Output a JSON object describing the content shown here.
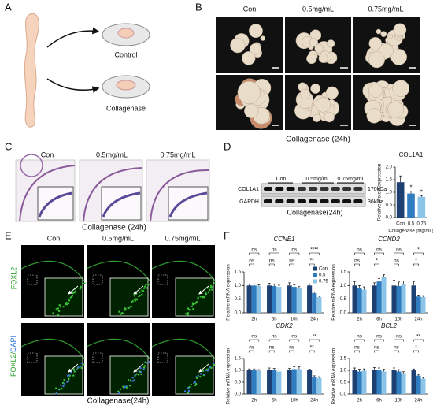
{
  "panels": {
    "A": {
      "label": "A",
      "control": "Control",
      "treated": "Collagenase"
    },
    "B": {
      "label": "B",
      "columns": [
        "Con",
        "0.5mg/mL",
        "0.75mg/mL"
      ],
      "caption": "Collagenase (24h)"
    },
    "C": {
      "label": "C",
      "columns": [
        "Con",
        "0.5mg/mL",
        "0.75mg/mL"
      ],
      "caption": "Collagenase (24h)"
    },
    "D": {
      "label": "D",
      "blot_columns": [
        "Con",
        "0.5mg/mL",
        "0.75mg/mL"
      ],
      "proteins": [
        "COL1A1",
        "GAPDH"
      ],
      "sizes": [
        "170kDa",
        "36kDa"
      ],
      "caption": "Collagenase(24h)"
    },
    "E": {
      "label": "E",
      "columns": [
        "Con",
        "0.5mg/mL",
        "0.75mg/mL"
      ],
      "row_labels": [
        "FOXL2",
        [
          "FOXL2/",
          "DAPI"
        ]
      ],
      "caption": "Collagenase(24h)"
    },
    "F": {
      "label": "F"
    }
  },
  "chart_data": [
    {
      "type": "bar",
      "title": "COL1A1",
      "ylabel": "Relative protein expression",
      "xlabel": "Collagenase (mg/mL)",
      "categories": [
        "Con",
        "0.5",
        "0.75"
      ],
      "values": [
        1.4,
        0.95,
        0.82
      ],
      "errors": [
        0.25,
        0.1,
        0.05
      ],
      "colors": [
        "#1d3f72",
        "#2f7dc0",
        "#8cc4e8"
      ],
      "significance": [
        null,
        "*",
        "*"
      ],
      "ylim": [
        0,
        2
      ],
      "yticks": [
        {
          "value": 0,
          "label": "0.0"
        },
        0.5,
        {
          "value": 1,
          "label": "1.0"
        },
        1.5,
        {
          "value": 2,
          "label": "2.0"
        }
      ]
    },
    {
      "type": "bar",
      "title": "CCNE1",
      "italic_title": true,
      "ylabel": "Relative mRNA expression",
      "legend": true,
      "categories": [
        "2h",
        "6h",
        "10h",
        "24h"
      ],
      "series": [
        {
          "name": "Con",
          "color": "#1d3f72",
          "values": [
            1.0,
            1.0,
            1.0,
            1.0
          ],
          "errors": [
            0.05,
            0.08,
            0.1,
            0.06
          ]
        },
        {
          "name": "0.5",
          "color": "#2f7dc0",
          "values": [
            1.0,
            0.98,
            0.95,
            0.72
          ],
          "errors": [
            0.06,
            0.08,
            0.07,
            0.05
          ]
        },
        {
          "name": "0.75",
          "color": "#8cc4e8",
          "values": [
            0.98,
            0.95,
            0.9,
            0.58
          ],
          "errors": [
            0.05,
            0.06,
            0.06,
            0.04
          ]
        }
      ],
      "significance": [
        [
          "ns",
          "ns"
        ],
        [
          "ns",
          "ns"
        ],
        [
          "ns",
          "ns"
        ],
        [
          "****",
          "**"
        ]
      ],
      "ylim": [
        0,
        1.5
      ],
      "yticks": [
        {
          "value": 0,
          "label": "0.0"
        },
        0.5,
        {
          "value": 1,
          "label": "1.0"
        },
        1.5
      ]
    },
    {
      "type": "bar",
      "title": "CCND2",
      "italic_title": true,
      "ylabel": "Relative mRNA expression",
      "categories": [
        "2h",
        "6h",
        "10h",
        "24h"
      ],
      "series": [
        {
          "color": "#1d3f72",
          "values": [
            1.0,
            1.0,
            1.0,
            1.0
          ],
          "errors": [
            0.15,
            0.1,
            0.2,
            0.15
          ]
        },
        {
          "color": "#2f7dc0",
          "values": [
            0.9,
            1.15,
            0.98,
            0.6
          ],
          "errors": [
            0.1,
            0.1,
            0.15,
            0.05
          ]
        },
        {
          "color": "#8cc4e8",
          "values": [
            0.85,
            1.3,
            1.05,
            0.58
          ],
          "errors": [
            0.1,
            0.1,
            0.12,
            0.05
          ]
        }
      ],
      "significance": [
        [
          "ns",
          "ns"
        ],
        [
          "ns",
          "*"
        ],
        [
          "ns",
          "ns"
        ],
        [
          "*",
          "*"
        ]
      ],
      "ylim": [
        0,
        1.5
      ],
      "yticks": [
        {
          "value": 0,
          "label": "0.0"
        },
        0.5,
        {
          "value": 1,
          "label": "1.0"
        },
        1.5
      ]
    },
    {
      "type": "bar",
      "title": "CDK2",
      "italic_title": true,
      "ylabel": "Relative mRNA expression",
      "categories": [
        "2h",
        "6h",
        "10h",
        "24h"
      ],
      "series": [
        {
          "color": "#1d3f72",
          "values": [
            1.0,
            1.0,
            1.0,
            1.0
          ],
          "errors": [
            0.06,
            0.1,
            0.08,
            0.05
          ]
        },
        {
          "color": "#2f7dc0",
          "values": [
            1.0,
            1.0,
            1.05,
            0.72
          ],
          "errors": [
            0.06,
            0.08,
            0.1,
            0.05
          ]
        },
        {
          "color": "#8cc4e8",
          "values": [
            0.98,
            0.95,
            1.05,
            0.68
          ],
          "errors": [
            0.05,
            0.06,
            0.1,
            0.05
          ]
        }
      ],
      "significance": [
        [
          "ns",
          "ns"
        ],
        [
          "ns",
          "ns"
        ],
        [
          "ns",
          "ns"
        ],
        [
          "**",
          "**"
        ]
      ],
      "ylim": [
        0,
        1.5
      ],
      "yticks": [
        {
          "value": 0,
          "label": "0.0"
        },
        0.5,
        {
          "value": 1,
          "label": "1.0"
        },
        1.5
      ]
    },
    {
      "type": "bar",
      "title": "BCL2",
      "italic_title": true,
      "ylabel": "Relative mRNA expression",
      "categories": [
        "2h",
        "6h",
        "10h",
        "24h"
      ],
      "series": [
        {
          "color": "#1d3f72",
          "values": [
            1.0,
            1.0,
            1.0,
            1.0
          ],
          "errors": [
            0.1,
            0.12,
            0.1,
            0.06
          ]
        },
        {
          "color": "#2f7dc0",
          "values": [
            0.95,
            1.0,
            0.95,
            0.78
          ],
          "errors": [
            0.1,
            0.1,
            0.08,
            0.05
          ]
        },
        {
          "color": "#8cc4e8",
          "values": [
            0.98,
            0.95,
            0.88,
            0.65
          ],
          "errors": [
            0.08,
            0.1,
            0.06,
            0.05
          ]
        }
      ],
      "significance": [
        [
          "ns",
          "ns"
        ],
        [
          "ns",
          "ns"
        ],
        [
          "ns",
          "ns"
        ],
        [
          "**",
          "*"
        ]
      ],
      "ylim": [
        0,
        1.5
      ],
      "yticks": [
        {
          "value": 0,
          "label": "0.0"
        },
        0.5,
        {
          "value": 1,
          "label": "1.0"
        },
        1.5
      ]
    }
  ]
}
